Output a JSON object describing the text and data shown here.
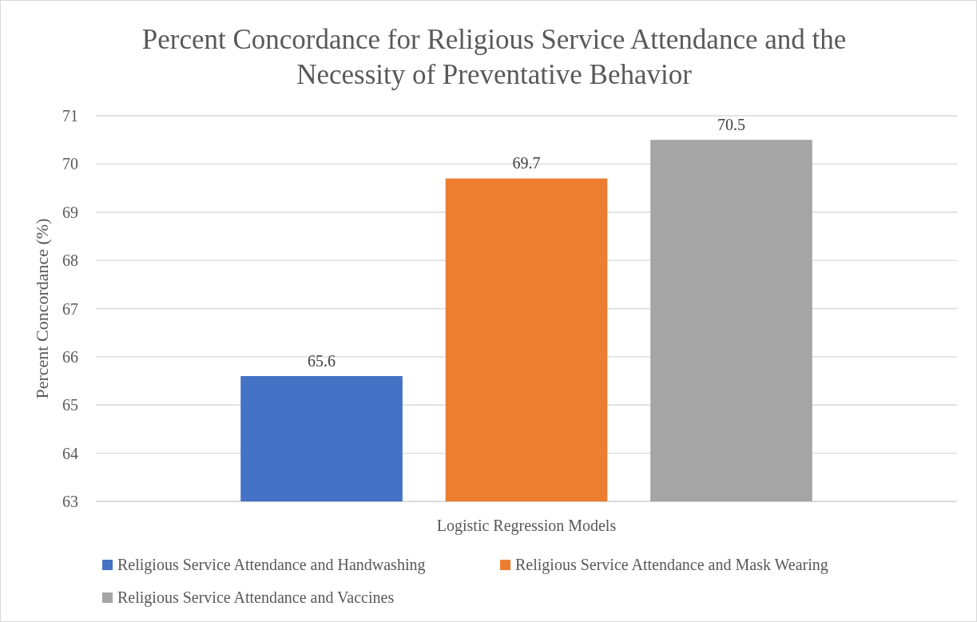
{
  "chart_data": {
    "type": "bar",
    "title": "Percent Concordance for Religious Service Attendance and the Necessity of Preventative Behavior",
    "ylabel": "Percent Concordance (%)",
    "categories": [
      "Logistic Regression Models"
    ],
    "series": [
      {
        "name": "Religious Service Attendance and Handwashing",
        "color": "#4472c4",
        "values": [
          65.6
        ]
      },
      {
        "name": "Religious Service Attendance and Mask Wearing",
        "color": "#ed7d31",
        "values": [
          69.7
        ]
      },
      {
        "name": "Religious Service Attendance and Vaccines",
        "color": "#a5a5a5",
        "values": [
          70.5
        ]
      }
    ],
    "ylim": [
      63,
      71
    ],
    "yticks": [
      63,
      64,
      65,
      66,
      67,
      68,
      69,
      70,
      71
    ],
    "grid": "y",
    "data_labels": true,
    "legend": "bottom"
  }
}
